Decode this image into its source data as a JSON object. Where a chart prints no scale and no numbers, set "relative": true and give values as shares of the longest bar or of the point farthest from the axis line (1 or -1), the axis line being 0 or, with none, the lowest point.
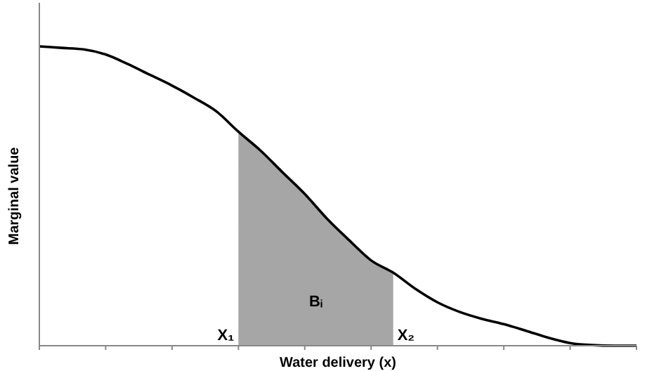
{
  "chart_data": {
    "type": "line",
    "xlabel": "Water delivery (x)",
    "ylabel": "Marginal value",
    "relative": true,
    "categories": [
      null,
      null,
      null,
      null,
      null,
      null,
      null,
      null,
      null,
      null,
      null,
      null,
      null,
      null,
      null,
      null,
      null,
      null,
      null,
      null,
      null,
      null,
      null,
      null,
      null,
      null,
      null,
      null
    ],
    "series": [
      {
        "type": "area",
        "color": "#a6a6a6",
        "values": [
          null,
          null,
          null,
          null,
          null,
          null,
          null,
          null,
          null,
          0.715,
          0.652,
          0.579,
          0.507,
          0.425,
          0.353,
          0.285,
          0.244,
          null,
          null,
          null,
          null,
          null,
          null,
          null,
          null,
          null,
          null,
          null
        ]
      },
      {
        "color": "#000000",
        "values": [
          1.0,
          0.995,
          0.99,
          0.973,
          0.941,
          0.905,
          0.869,
          0.828,
          0.783,
          0.715,
          0.652,
          0.579,
          0.507,
          0.425,
          0.353,
          0.285,
          0.244,
          0.19,
          0.145,
          0.113,
          0.09,
          0.072,
          0.05,
          0.027,
          0.009,
          0.002,
          0,
          0
        ]
      }
    ],
    "annotations": [
      "X₁",
      "Bᵢ",
      "X₂"
    ],
    "grid": false,
    "marker": "none",
    "line_style": "solid"
  }
}
